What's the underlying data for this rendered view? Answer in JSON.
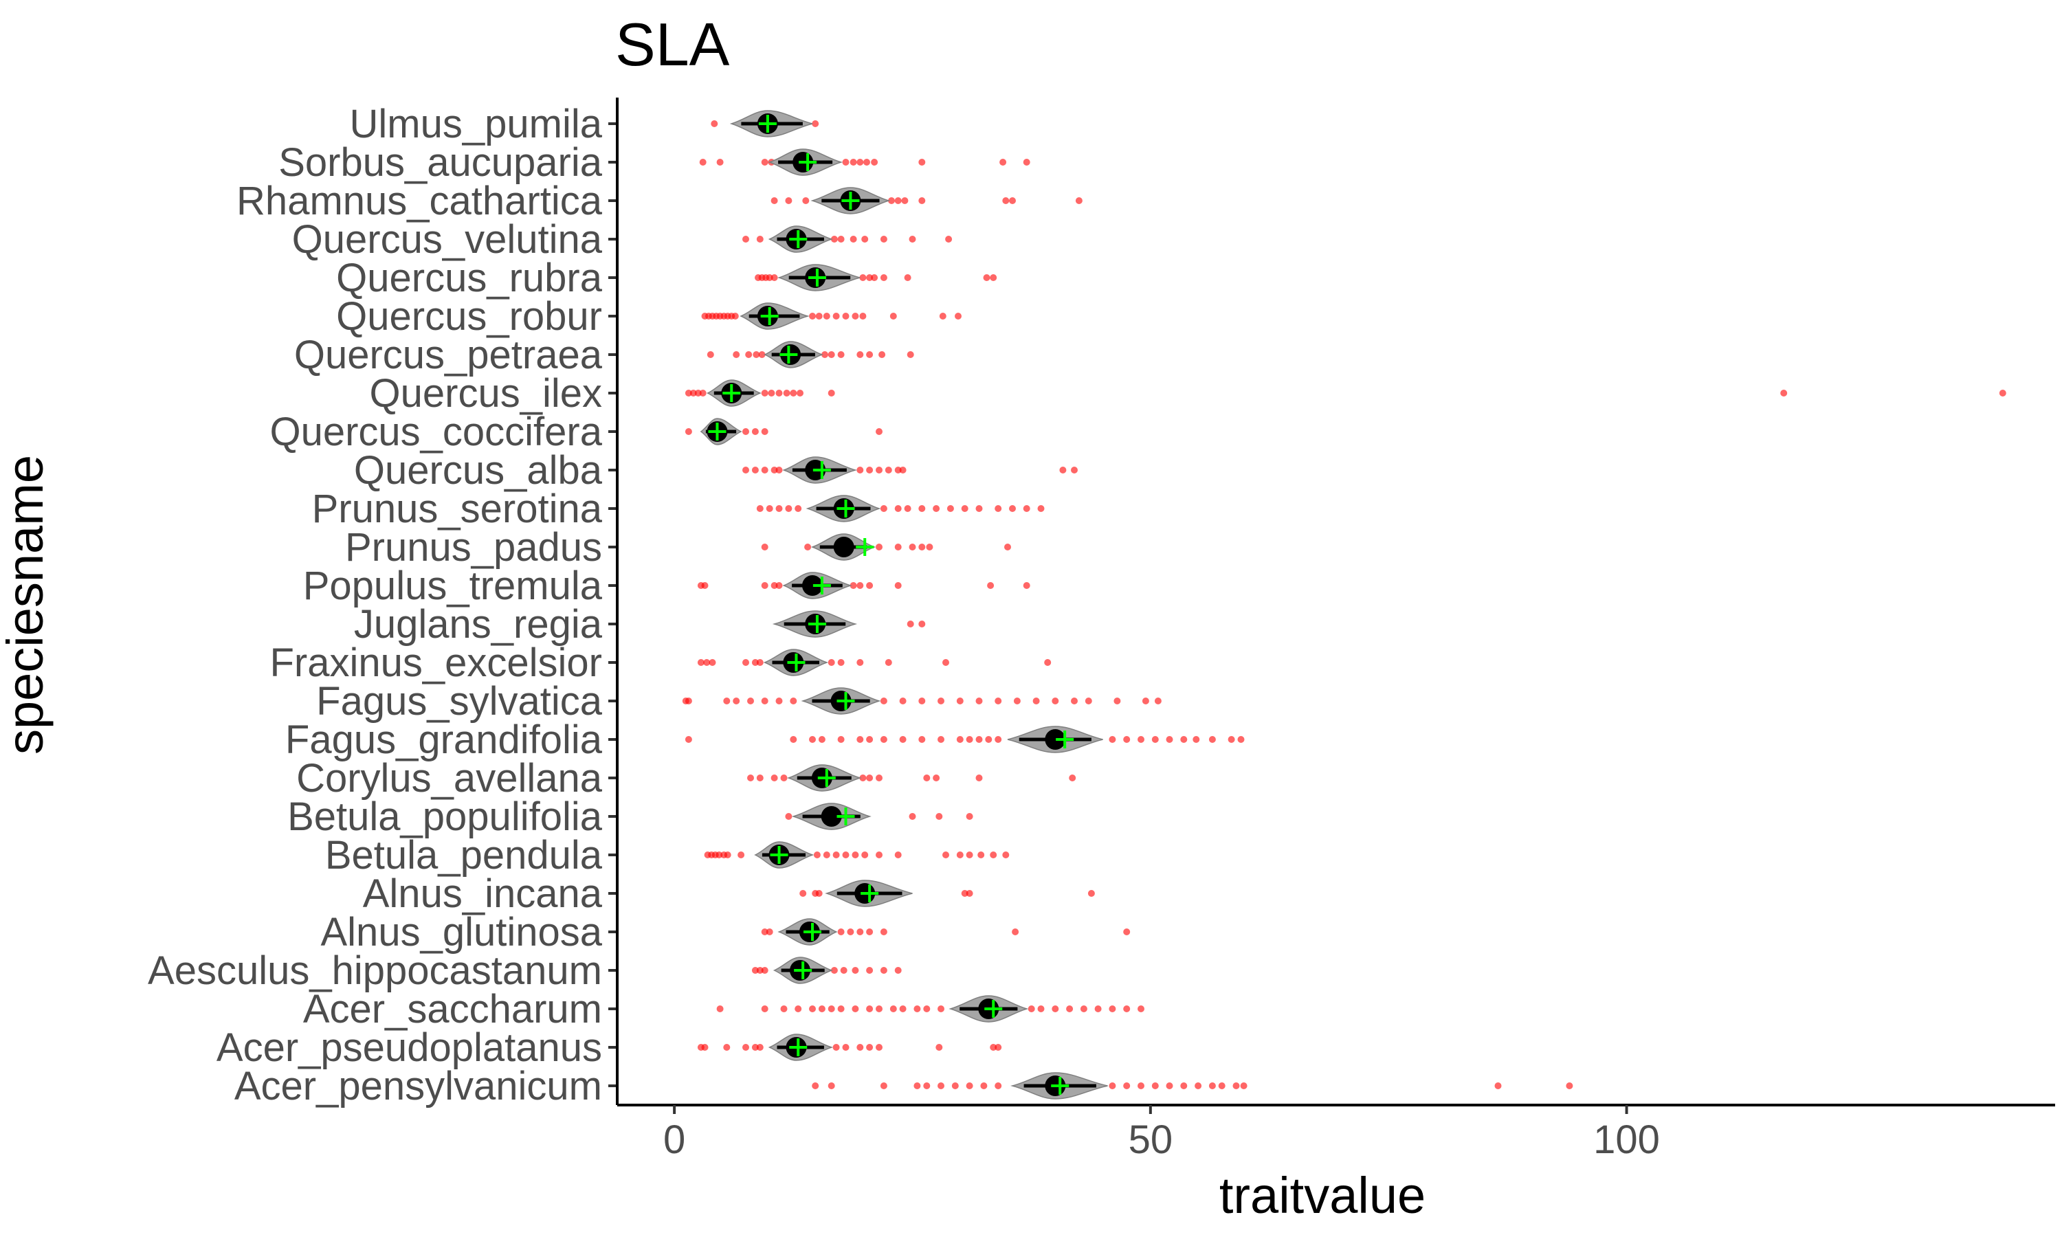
{
  "chart_data": {
    "type": "violin",
    "title": "SLA",
    "xlabel": "traitvalue",
    "ylabel": "speciesname",
    "xlim": [
      -6,
      145
    ],
    "x_ticks": [
      0,
      50,
      100
    ],
    "grid": false,
    "colors": {
      "outlier": "#ff0000",
      "violin_fill": "#a6a6a6",
      "median": "#000000",
      "mean_marker": "#00ff00"
    },
    "categories": [
      "Ulmus_pumila",
      "Sorbus_aucuparia",
      "Rhamnus_cathartica",
      "Quercus_velutina",
      "Quercus_rubra",
      "Quercus_robur",
      "Quercus_petraea",
      "Quercus_ilex",
      "Quercus_coccifera",
      "Quercus_alba",
      "Prunus_serotina",
      "Prunus_padus",
      "Populus_tremula",
      "Juglans_regia",
      "Fraxinus_excelsior",
      "Fagus_sylvatica",
      "Fagus_grandifolia",
      "Corylus_avellana",
      "Betula_populifolia",
      "Betula_pendula",
      "Alnus_incana",
      "Alnus_glutinosa",
      "Aesculus_hippocastanum",
      "Acer_saccharum",
      "Acer_pseudoplatanus",
      "Acer_pensylvanicum"
    ],
    "series": [
      {
        "species": "Ulmus_pumila",
        "median": 9.8,
        "mean": 9.8,
        "violin_min": 6.0,
        "violin_max": 14.5,
        "outliers": [
          4.2,
          14.8
        ]
      },
      {
        "species": "Sorbus_aucuparia",
        "median": 13.5,
        "mean": 14.0,
        "violin_min": 10.0,
        "violin_max": 17.5,
        "outliers": [
          3.0,
          4.8,
          9.5,
          10.2,
          11.0,
          16.2,
          18.0,
          18.8,
          19.5,
          20.2,
          21.0,
          26.0,
          34.5,
          37.0
        ]
      },
      {
        "species": "Rhamnus_cathartica",
        "median": 18.5,
        "mean": 18.5,
        "violin_min": 14.5,
        "violin_max": 22.5,
        "outliers": [
          10.5,
          12.0,
          13.8,
          22.8,
          23.5,
          24.2,
          26.0,
          34.8,
          35.5,
          42.5
        ]
      },
      {
        "species": "Quercus_velutina",
        "median": 12.8,
        "mean": 13.0,
        "violin_min": 10.0,
        "violin_max": 16.5,
        "outliers": [
          7.5,
          9.0,
          16.8,
          17.5,
          18.8,
          20.0,
          22.0,
          25.0,
          28.8
        ]
      },
      {
        "species": "Quercus_rubra",
        "median": 14.8,
        "mean": 15.0,
        "violin_min": 11.0,
        "violin_max": 19.5,
        "outliers": [
          8.8,
          9.2,
          9.6,
          10.0,
          10.5,
          19.8,
          20.5,
          21.0,
          22.0,
          24.5,
          32.8,
          33.5
        ]
      },
      {
        "species": "Quercus_robur",
        "median": 9.8,
        "mean": 10.0,
        "violin_min": 7.0,
        "violin_max": 14.0,
        "outliers": [
          3.2,
          3.6,
          4.0,
          4.4,
          4.8,
          5.2,
          5.6,
          6.0,
          6.4,
          14.5,
          15.2,
          16.0,
          17.0,
          18.0,
          19.0,
          19.8,
          23.0,
          28.2,
          29.8
        ]
      },
      {
        "species": "Quercus_petraea",
        "median": 12.2,
        "mean": 12.0,
        "violin_min": 9.5,
        "violin_max": 15.5,
        "outliers": [
          3.8,
          6.5,
          7.8,
          8.6,
          9.2,
          15.8,
          16.5,
          17.5,
          19.5,
          20.5,
          21.8,
          24.8
        ]
      },
      {
        "species": "Quercus_ilex",
        "median": 6.0,
        "mean": 6.0,
        "violin_min": 3.5,
        "violin_max": 9.0,
        "outliers": [
          1.5,
          2.0,
          2.5,
          3.0,
          9.5,
          10.2,
          11.0,
          11.8,
          12.5,
          13.2,
          16.5,
          116.5,
          139.5
        ]
      },
      {
        "species": "Quercus_coccifera",
        "median": 4.5,
        "mean": 4.5,
        "violin_min": 2.8,
        "violin_max": 7.0,
        "outliers": [
          1.5,
          7.5,
          8.5,
          9.5,
          21.5
        ]
      },
      {
        "species": "Quercus_alba",
        "median": 14.8,
        "mean": 15.5,
        "violin_min": 11.5,
        "violin_max": 19.0,
        "outliers": [
          7.5,
          8.5,
          9.5,
          10.5,
          11.0,
          19.5,
          20.5,
          21.5,
          22.5,
          23.5,
          24.0,
          40.8,
          42.0
        ]
      },
      {
        "species": "Prunus_serotina",
        "median": 17.8,
        "mean": 18.0,
        "violin_min": 14.0,
        "violin_max": 21.5,
        "outliers": [
          9.0,
          10.0,
          11.0,
          12.0,
          13.0,
          22.0,
          23.5,
          24.5,
          26.0,
          27.5,
          29.0,
          30.5,
          32.0,
          34.0,
          35.5,
          37.0,
          38.5
        ]
      },
      {
        "species": "Prunus_padus",
        "median": 17.8,
        "mean": 20.0,
        "violin_min": 14.5,
        "violin_max": 21.0,
        "outliers": [
          9.5,
          14.0,
          21.5,
          23.5,
          25.0,
          26.0,
          26.8,
          35.0
        ]
      },
      {
        "species": "Populus_tremula",
        "median": 14.5,
        "mean": 15.5,
        "violin_min": 11.5,
        "violin_max": 18.5,
        "outliers": [
          2.8,
          3.2,
          9.5,
          10.5,
          11.0,
          18.8,
          19.5,
          20.5,
          23.5,
          33.2,
          37.0
        ]
      },
      {
        "species": "Juglans_regia",
        "median": 14.8,
        "mean": 15.0,
        "violin_min": 10.5,
        "violin_max": 19.0,
        "outliers": [
          24.8,
          26.0
        ]
      },
      {
        "species": "Fraxinus_excelsior",
        "median": 12.5,
        "mean": 12.8,
        "violin_min": 9.5,
        "violin_max": 16.0,
        "outliers": [
          2.8,
          3.4,
          4.0,
          7.5,
          8.5,
          9.0,
          16.5,
          17.5,
          19.5,
          22.5,
          28.5,
          39.2
        ]
      },
      {
        "species": "Fagus_sylvatica",
        "median": 17.5,
        "mean": 18.0,
        "violin_min": 13.5,
        "violin_max": 21.5,
        "outliers": [
          1.2,
          1.5,
          5.5,
          6.5,
          8.0,
          9.5,
          11.0,
          12.5,
          22.0,
          24.0,
          26.0,
          28.0,
          30.0,
          32.0,
          34.0,
          36.0,
          38.0,
          40.0,
          42.0,
          43.5,
          46.5,
          49.5,
          50.8
        ]
      },
      {
        "species": "Fagus_grandifolia",
        "median": 40.0,
        "mean": 41.0,
        "violin_min": 35.0,
        "violin_max": 45.0,
        "outliers": [
          1.5,
          12.5,
          14.5,
          15.5,
          17.5,
          19.5,
          20.5,
          22.0,
          24.0,
          26.0,
          28.0,
          30.0,
          31.0,
          32.0,
          33.0,
          34.0,
          46.0,
          47.5,
          49.0,
          50.5,
          52.0,
          53.5,
          54.8,
          56.5,
          58.5,
          59.5
        ]
      },
      {
        "species": "Corylus_avellana",
        "median": 15.5,
        "mean": 16.0,
        "violin_min": 12.0,
        "violin_max": 19.5,
        "outliers": [
          8.0,
          9.0,
          10.5,
          11.5,
          19.8,
          20.5,
          21.5,
          26.5,
          27.5,
          32.0,
          41.8
        ]
      },
      {
        "species": "Betula_populifolia",
        "median": 16.5,
        "mean": 18.0,
        "violin_min": 12.5,
        "violin_max": 20.5,
        "outliers": [
          12.0,
          25.0,
          27.8,
          31.0
        ]
      },
      {
        "species": "Betula_pendula",
        "median": 11.0,
        "mean": 11.0,
        "violin_min": 8.5,
        "violin_max": 14.5,
        "outliers": [
          3.5,
          3.9,
          4.3,
          4.7,
          5.2,
          5.6,
          7.0,
          15.0,
          16.0,
          17.0,
          18.0,
          19.0,
          20.0,
          21.5,
          23.5,
          28.5,
          30.0,
          31.0,
          32.2,
          33.5,
          34.8
        ]
      },
      {
        "species": "Alnus_incana",
        "median": 20.0,
        "mean": 20.5,
        "violin_min": 16.0,
        "violin_max": 25.0,
        "outliers": [
          13.5,
          14.8,
          15.2,
          30.5,
          31.0,
          43.8
        ]
      },
      {
        "species": "Alnus_glutinosa",
        "median": 14.2,
        "mean": 14.5,
        "violin_min": 11.0,
        "violin_max": 17.0,
        "outliers": [
          9.5,
          10.0,
          17.5,
          18.5,
          19.5,
          20.5,
          22.0,
          35.8,
          47.5
        ]
      },
      {
        "species": "Aesculus_hippocastanum",
        "median": 13.2,
        "mean": 13.5,
        "violin_min": 10.5,
        "violin_max": 16.5,
        "outliers": [
          8.5,
          9.0,
          9.5,
          16.8,
          17.8,
          19.0,
          20.5,
          22.0,
          23.5
        ]
      },
      {
        "species": "Acer_saccharum",
        "median": 33.0,
        "mean": 33.5,
        "violin_min": 29.0,
        "violin_max": 37.0,
        "outliers": [
          4.8,
          9.5,
          11.5,
          13.0,
          14.5,
          15.5,
          16.5,
          17.5,
          19.0,
          20.5,
          21.5,
          23.0,
          24.0,
          25.5,
          26.5,
          28.0,
          37.5,
          38.5,
          40.0,
          41.5,
          43.0,
          44.5,
          46.0,
          47.5,
          49.0
        ]
      },
      {
        "species": "Acer_pseudoplatanus",
        "median": 12.8,
        "mean": 13.0,
        "violin_min": 10.0,
        "violin_max": 16.5,
        "outliers": [
          2.8,
          3.2,
          5.5,
          7.5,
          8.5,
          9.0,
          17.0,
          18.0,
          19.5,
          20.5,
          21.5,
          27.8,
          33.5,
          34.0
        ]
      },
      {
        "species": "Acer_pensylvanicum",
        "median": 40.0,
        "mean": 40.5,
        "violin_min": 35.5,
        "violin_max": 45.5,
        "outliers": [
          14.8,
          16.5,
          22.0,
          25.5,
          26.5,
          28.0,
          29.5,
          31.0,
          32.5,
          34.0,
          46.0,
          47.5,
          49.0,
          50.5,
          52.0,
          53.5,
          55.0,
          56.5,
          57.5,
          59.0,
          59.8,
          86.5,
          94.0
        ]
      }
    ]
  }
}
